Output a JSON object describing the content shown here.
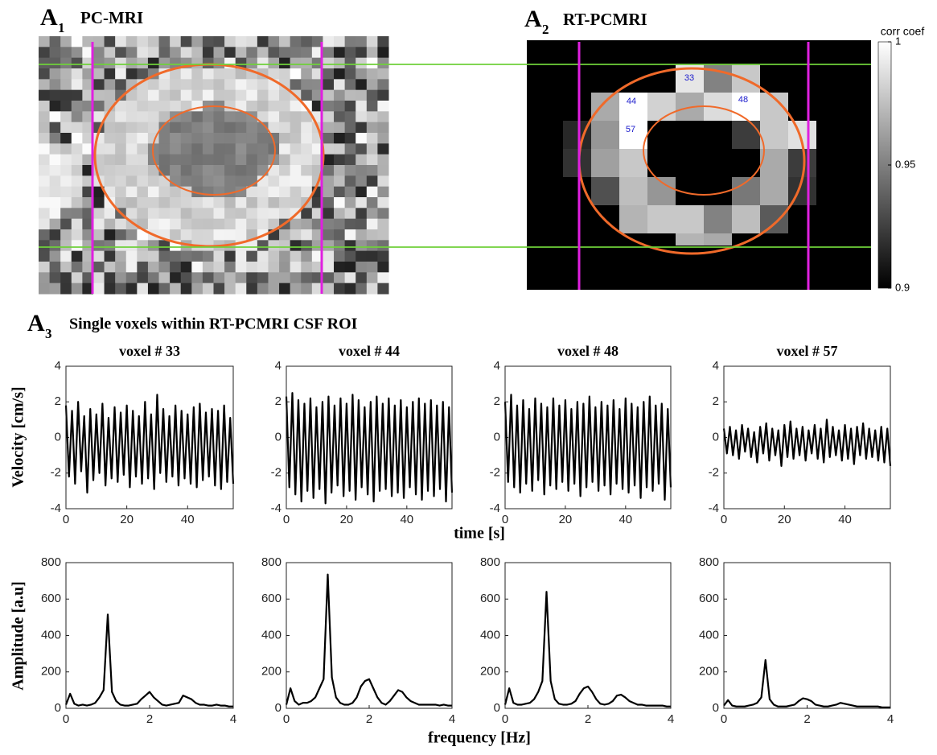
{
  "figure": {
    "a1": {
      "label": "A",
      "sub": "1",
      "title": "PC-MRI"
    },
    "a2": {
      "label": "A",
      "sub": "2",
      "title": "RT-PCMRI",
      "voxel_labels": [
        "33",
        "44",
        "48",
        "57"
      ],
      "colorbar": {
        "title": "corr coef",
        "lim": [
          0.9,
          1
        ],
        "ticks": [
          0.9,
          0.95,
          1
        ]
      }
    },
    "a3": {
      "label": "A",
      "sub": "3",
      "title": "Single voxels within RT-PCMRI CSF ROI"
    },
    "velocity_ylabel": "Velocity [cm/s]",
    "amplitude_ylabel": "Amplitude [a.u]",
    "time_xlabel": "time [s]",
    "frequency_xlabel": "frequency [Hz]"
  },
  "chart_data": [
    {
      "type": "line",
      "title": "voxel # 33",
      "color": "#000000",
      "xlim": [
        0,
        55
      ],
      "ylim": [
        -4,
        4
      ],
      "xticks": [
        0,
        20,
        40
      ],
      "yticks": [
        -4,
        -2,
        0,
        2,
        4
      ],
      "x": [
        0,
        1,
        2,
        3,
        4,
        5,
        6,
        7,
        8,
        9,
        10,
        11,
        12,
        13,
        14,
        15,
        16,
        17,
        18,
        19,
        20,
        21,
        22,
        23,
        24,
        25,
        26,
        27,
        28,
        29,
        30,
        31,
        32,
        33,
        34,
        35,
        36,
        37,
        38,
        39,
        40,
        41,
        42,
        43,
        44,
        45,
        46,
        47,
        48,
        49,
        50,
        51,
        52,
        53,
        54,
        55
      ],
      "values": [
        1.8,
        -2.2,
        1.5,
        -2.6,
        2.0,
        -1.9,
        1.2,
        -3.1,
        1.6,
        -2.4,
        1.3,
        -2.0,
        1.9,
        -2.7,
        1.1,
        -2.3,
        1.7,
        -2.5,
        1.4,
        -2.1,
        1.8,
        -2.8,
        1.5,
        -2.2,
        1.2,
        -2.6,
        2.0,
        -2.3,
        1.3,
        -2.9,
        2.4,
        -2.0,
        1.6,
        -2.5,
        1.2,
        -2.2,
        1.8,
        -2.7,
        1.5,
        -2.3,
        1.3,
        -2.6,
        1.7,
        -2.8,
        1.9,
        -2.4,
        1.4,
        -2.2,
        1.6,
        -2.7,
        1.5,
        -2.9,
        1.8,
        -2.5,
        1.1,
        -2.6
      ]
    },
    {
      "type": "line",
      "title": "voxel # 44",
      "color": "#000000",
      "xlim": [
        0,
        55
      ],
      "ylim": [
        -4,
        4
      ],
      "xticks": [
        0,
        20,
        40
      ],
      "yticks": [
        -4,
        -2,
        0,
        2,
        4
      ],
      "x": [
        0,
        1,
        2,
        3,
        4,
        5,
        6,
        7,
        8,
        9,
        10,
        11,
        12,
        13,
        14,
        15,
        16,
        17,
        18,
        19,
        20,
        21,
        22,
        23,
        24,
        25,
        26,
        27,
        28,
        29,
        30,
        31,
        32,
        33,
        34,
        35,
        36,
        37,
        38,
        39,
        40,
        41,
        42,
        43,
        44,
        45,
        46,
        47,
        48,
        49,
        50,
        51,
        52,
        53,
        54,
        55
      ],
      "values": [
        2.3,
        -2.8,
        2.5,
        -3.2,
        2.1,
        -3.6,
        1.9,
        -3.0,
        2.2,
        -3.4,
        1.7,
        -2.9,
        2.0,
        -3.7,
        2.3,
        -3.1,
        1.8,
        -2.7,
        2.2,
        -3.3,
        1.9,
        -3.0,
        2.4,
        -3.5,
        2.1,
        -2.8,
        1.7,
        -3.2,
        2.0,
        -3.6,
        2.3,
        -3.0,
        1.9,
        -2.9,
        2.2,
        -3.3,
        1.8,
        -3.1,
        2.1,
        -3.4,
        1.7,
        -2.8,
        2.0,
        -3.2,
        2.2,
        -3.5,
        1.9,
        -3.0,
        2.1,
        -3.3,
        1.8,
        -2.9,
        2.0,
        -3.6,
        1.7,
        -3.1
      ]
    },
    {
      "type": "line",
      "title": "voxel # 48",
      "color": "#000000",
      "xlim": [
        0,
        55
      ],
      "ylim": [
        -4,
        4
      ],
      "xticks": [
        0,
        20,
        40
      ],
      "yticks": [
        -4,
        -2,
        0,
        2,
        4
      ],
      "x": [
        0,
        1,
        2,
        3,
        4,
        5,
        6,
        7,
        8,
        9,
        10,
        11,
        12,
        13,
        14,
        15,
        16,
        17,
        18,
        19,
        20,
        21,
        22,
        23,
        24,
        25,
        26,
        27,
        28,
        29,
        30,
        31,
        32,
        33,
        34,
        35,
        36,
        37,
        38,
        39,
        40,
        41,
        42,
        43,
        44,
        45,
        46,
        47,
        48,
        49,
        50,
        51,
        52,
        53,
        54,
        55
      ],
      "values": [
        2.0,
        -2.5,
        2.4,
        -2.8,
        1.8,
        -3.1,
        2.1,
        -2.6,
        1.6,
        -3.0,
        2.2,
        -2.4,
        1.9,
        -3.2,
        1.7,
        -2.7,
        2.2,
        -2.9,
        1.8,
        -2.5,
        2.1,
        -3.0,
        1.6,
        -2.6,
        2.0,
        -3.3,
        1.9,
        -2.8,
        2.3,
        -2.5,
        1.7,
        -3.0,
        2.0,
        -2.7,
        1.8,
        -3.2,
        2.1,
        -2.6,
        1.6,
        -2.9,
        2.2,
        -3.1,
        1.9,
        -2.7,
        1.7,
        -3.4,
        2.0,
        -2.8,
        2.3,
        -3.0,
        1.8,
        -2.6,
        1.9,
        -3.5,
        1.6,
        -2.8
      ]
    },
    {
      "type": "line",
      "title": "voxel # 57",
      "color": "#000000",
      "xlim": [
        0,
        55
      ],
      "ylim": [
        -4,
        4
      ],
      "xticks": [
        0,
        20,
        40
      ],
      "yticks": [
        -4,
        -2,
        0,
        2,
        4
      ],
      "x": [
        0,
        1,
        2,
        3,
        4,
        5,
        6,
        7,
        8,
        9,
        10,
        11,
        12,
        13,
        14,
        15,
        16,
        17,
        18,
        19,
        20,
        21,
        22,
        23,
        24,
        25,
        26,
        27,
        28,
        29,
        30,
        31,
        32,
        33,
        34,
        35,
        36,
        37,
        38,
        39,
        40,
        41,
        42,
        43,
        44,
        45,
        46,
        47,
        48,
        49,
        50,
        51,
        52,
        53,
        54,
        55
      ],
      "values": [
        0.5,
        -0.9,
        0.6,
        -1.0,
        0.4,
        -1.2,
        0.7,
        -0.8,
        0.5,
        -1.1,
        0.3,
        -1.4,
        0.6,
        -0.9,
        0.8,
        -1.3,
        0.5,
        -1.0,
        0.4,
        -1.6,
        0.7,
        -1.1,
        0.9,
        -1.2,
        0.5,
        -1.0,
        0.6,
        -1.3,
        0.4,
        -0.9,
        0.7,
        -1.2,
        0.5,
        -1.4,
        1.0,
        -1.1,
        0.6,
        -1.0,
        0.4,
        -1.3,
        0.7,
        -1.2,
        0.5,
        -1.5,
        0.6,
        -1.0,
        0.8,
        -1.2,
        0.5,
        -1.1,
        0.4,
        -1.3,
        0.6,
        -1.4,
        0.5,
        -1.6
      ]
    },
    {
      "type": "line",
      "color": "#000000",
      "xlim": [
        0,
        4
      ],
      "ylim": [
        0,
        800
      ],
      "xticks": [
        0,
        2,
        4
      ],
      "yticks": [
        0,
        200,
        400,
        600,
        800
      ],
      "x": [
        0,
        0.1,
        0.2,
        0.3,
        0.4,
        0.5,
        0.6,
        0.7,
        0.8,
        0.9,
        1,
        1.1,
        1.2,
        1.3,
        1.4,
        1.5,
        1.6,
        1.7,
        1.8,
        1.9,
        2,
        2.1,
        2.2,
        2.3,
        2.4,
        2.5,
        2.6,
        2.7,
        2.8,
        2.9,
        3,
        3.1,
        3.2,
        3.3,
        3.4,
        3.5,
        3.6,
        3.7,
        3.8,
        3.9,
        4
      ],
      "values": [
        20,
        80,
        25,
        15,
        20,
        15,
        20,
        30,
        60,
        100,
        515,
        90,
        40,
        20,
        15,
        15,
        20,
        25,
        50,
        70,
        90,
        60,
        40,
        20,
        15,
        20,
        25,
        30,
        70,
        60,
        50,
        30,
        20,
        20,
        15,
        15,
        20,
        15,
        15,
        10,
        10
      ]
    },
    {
      "type": "line",
      "color": "#000000",
      "xlim": [
        0,
        4
      ],
      "ylim": [
        0,
        800
      ],
      "xticks": [
        0,
        2,
        4
      ],
      "yticks": [
        0,
        200,
        400,
        600,
        800
      ],
      "x": [
        0,
        0.1,
        0.2,
        0.3,
        0.4,
        0.5,
        0.6,
        0.7,
        0.8,
        0.9,
        1,
        1.1,
        1.2,
        1.3,
        1.4,
        1.5,
        1.6,
        1.7,
        1.8,
        1.9,
        2,
        2.1,
        2.2,
        2.3,
        2.4,
        2.5,
        2.6,
        2.7,
        2.8,
        2.9,
        3,
        3.1,
        3.2,
        3.3,
        3.4,
        3.5,
        3.6,
        3.7,
        3.8,
        3.9,
        4
      ],
      "values": [
        20,
        110,
        40,
        20,
        30,
        30,
        40,
        60,
        110,
        160,
        735,
        170,
        60,
        30,
        20,
        20,
        30,
        60,
        120,
        150,
        160,
        110,
        60,
        30,
        20,
        40,
        70,
        100,
        90,
        60,
        40,
        30,
        20,
        20,
        20,
        20,
        20,
        15,
        20,
        15,
        15
      ]
    },
    {
      "type": "line",
      "color": "#000000",
      "xlim": [
        0,
        4
      ],
      "ylim": [
        0,
        800
      ],
      "xticks": [
        0,
        2,
        4
      ],
      "yticks": [
        0,
        200,
        400,
        600,
        800
      ],
      "x": [
        0,
        0.1,
        0.2,
        0.3,
        0.4,
        0.5,
        0.6,
        0.7,
        0.8,
        0.9,
        1,
        1.1,
        1.2,
        1.3,
        1.4,
        1.5,
        1.6,
        1.7,
        1.8,
        1.9,
        2,
        2.1,
        2.2,
        2.3,
        2.4,
        2.5,
        2.6,
        2.7,
        2.8,
        2.9,
        3,
        3.1,
        3.2,
        3.3,
        3.4,
        3.5,
        3.6,
        3.7,
        3.8,
        3.9,
        4
      ],
      "values": [
        20,
        110,
        30,
        20,
        20,
        25,
        30,
        50,
        90,
        150,
        640,
        150,
        50,
        25,
        20,
        20,
        25,
        40,
        80,
        110,
        120,
        90,
        50,
        25,
        20,
        25,
        40,
        70,
        75,
        60,
        40,
        30,
        20,
        20,
        15,
        15,
        15,
        15,
        15,
        10,
        10
      ]
    },
    {
      "type": "line",
      "color": "#000000",
      "xlim": [
        0,
        4
      ],
      "ylim": [
        0,
        800
      ],
      "xticks": [
        0,
        2,
        4
      ],
      "yticks": [
        0,
        200,
        400,
        600,
        800
      ],
      "x": [
        0,
        0.1,
        0.2,
        0.3,
        0.4,
        0.5,
        0.6,
        0.7,
        0.8,
        0.9,
        1,
        1.1,
        1.2,
        1.3,
        1.4,
        1.5,
        1.6,
        1.7,
        1.8,
        1.9,
        2,
        2.1,
        2.2,
        2.3,
        2.4,
        2.5,
        2.6,
        2.7,
        2.8,
        2.9,
        3,
        3.1,
        3.2,
        3.3,
        3.4,
        3.5,
        3.6,
        3.7,
        3.8,
        3.9,
        4
      ],
      "values": [
        15,
        45,
        15,
        10,
        10,
        10,
        15,
        20,
        30,
        60,
        265,
        50,
        20,
        10,
        10,
        10,
        15,
        20,
        40,
        55,
        50,
        40,
        20,
        15,
        10,
        10,
        15,
        20,
        30,
        25,
        20,
        15,
        10,
        10,
        10,
        10,
        10,
        10,
        5,
        5,
        5
      ]
    }
  ]
}
